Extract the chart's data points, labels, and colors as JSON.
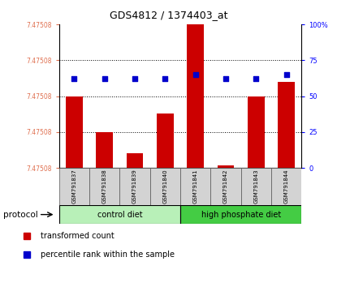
{
  "title": "GDS4812 / 1374403_at",
  "samples": [
    "GSM791837",
    "GSM791838",
    "GSM791839",
    "GSM791840",
    "GSM791841",
    "GSM791842",
    "GSM791843",
    "GSM791844"
  ],
  "bar_values": [
    50,
    25,
    10,
    38,
    100,
    2,
    50,
    60
  ],
  "percentile_values": [
    62,
    62,
    62,
    62,
    65,
    62,
    62,
    65
  ],
  "left_yticklabels": [
    "7.47508",
    "7.47508",
    "7.47508",
    "7.47508",
    "7.47508"
  ],
  "right_yticklabels": [
    "0",
    "25",
    "50",
    "75",
    "100%"
  ],
  "bar_color": "#cc0000",
  "dot_color": "#0000cc",
  "title_fontsize": 9,
  "protocol_groups": [
    {
      "label": "control diet",
      "color": "#b8f0b8"
    },
    {
      "label": "high phosphate diet",
      "color": "#44cc44"
    }
  ],
  "legend_items": [
    {
      "label": "transformed count",
      "color": "#cc0000"
    },
    {
      "label": "percentile rank within the sample",
      "color": "#0000cc"
    }
  ],
  "protocol_label": "protocol"
}
